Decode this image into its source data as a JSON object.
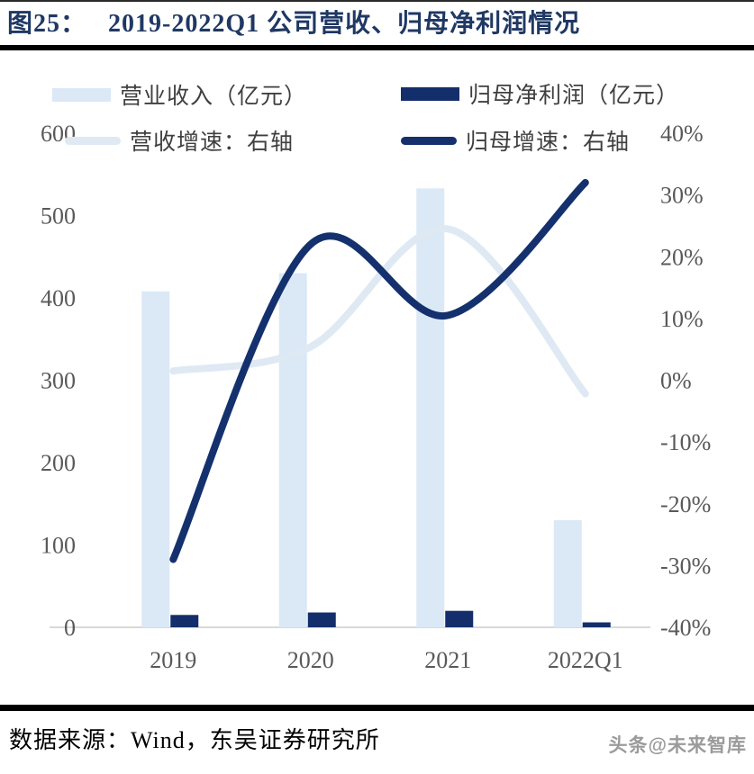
{
  "header": {
    "figure_label": "图25：",
    "title": "2019-2022Q1 公司营收、归母净利润情况"
  },
  "colors": {
    "revenue_bar": "#dbe8f6",
    "profit_bar": "#132e6b",
    "revenue_growth_line": "#dfe9f4",
    "profit_growth_line": "#14316e",
    "title_text": "#1f3864",
    "tick_text": "#595959",
    "axis_line": "#d9d9d9"
  },
  "legend": {
    "items": [
      {
        "label": "营业收入（亿元）",
        "swatch": "bar",
        "color": "#dbe8f6"
      },
      {
        "label": "归母净利润（亿元）",
        "swatch": "bar",
        "color": "#132e6b"
      },
      {
        "label": "营收增速：右轴",
        "swatch": "line",
        "color": "#dfe9f4"
      },
      {
        "label": "归母增速：右轴",
        "swatch": "line",
        "color": "#14316e"
      }
    ]
  },
  "chart_data": {
    "type": "combo",
    "title": "图25：2019-2022Q1 公司营收、归母净利润情况",
    "categories": [
      "2019",
      "2020",
      "2021",
      "2022Q1"
    ],
    "series": [
      {
        "name": "营业收入（亿元）",
        "type": "bar",
        "axis": "left",
        "color": "#dbe8f6",
        "values": [
          408,
          430,
          533,
          130
        ]
      },
      {
        "name": "归母净利润（亿元）",
        "type": "bar",
        "axis": "left",
        "color": "#132e6b",
        "values": [
          15,
          18,
          20,
          6
        ]
      },
      {
        "name": "营收增速：右轴",
        "type": "line",
        "axis": "right",
        "color": "#dfe9f4",
        "values": [
          1.5,
          5.4,
          24.5,
          -2.2
        ]
      },
      {
        "name": "归母增速：右轴",
        "type": "line",
        "axis": "right",
        "color": "#14316e",
        "values": [
          -29,
          22,
          10.5,
          32
        ]
      }
    ],
    "left_axis": {
      "min": 0,
      "max": 600,
      "step": 100,
      "ticks": [
        "0",
        "100",
        "200",
        "300",
        "400",
        "500",
        "600"
      ],
      "unit": "亿元"
    },
    "right_axis": {
      "min": -40,
      "max": 40,
      "step": 10,
      "ticks": [
        "-40%",
        "-30%",
        "-20%",
        "-10%",
        "0%",
        "10%",
        "20%",
        "30%",
        "40%"
      ],
      "unit": "%"
    },
    "grid": false,
    "legend_position": "top"
  },
  "footer": {
    "source": "数据来源：Wind，东吴证券研究所",
    "watermark": "头条@未来智库"
  }
}
